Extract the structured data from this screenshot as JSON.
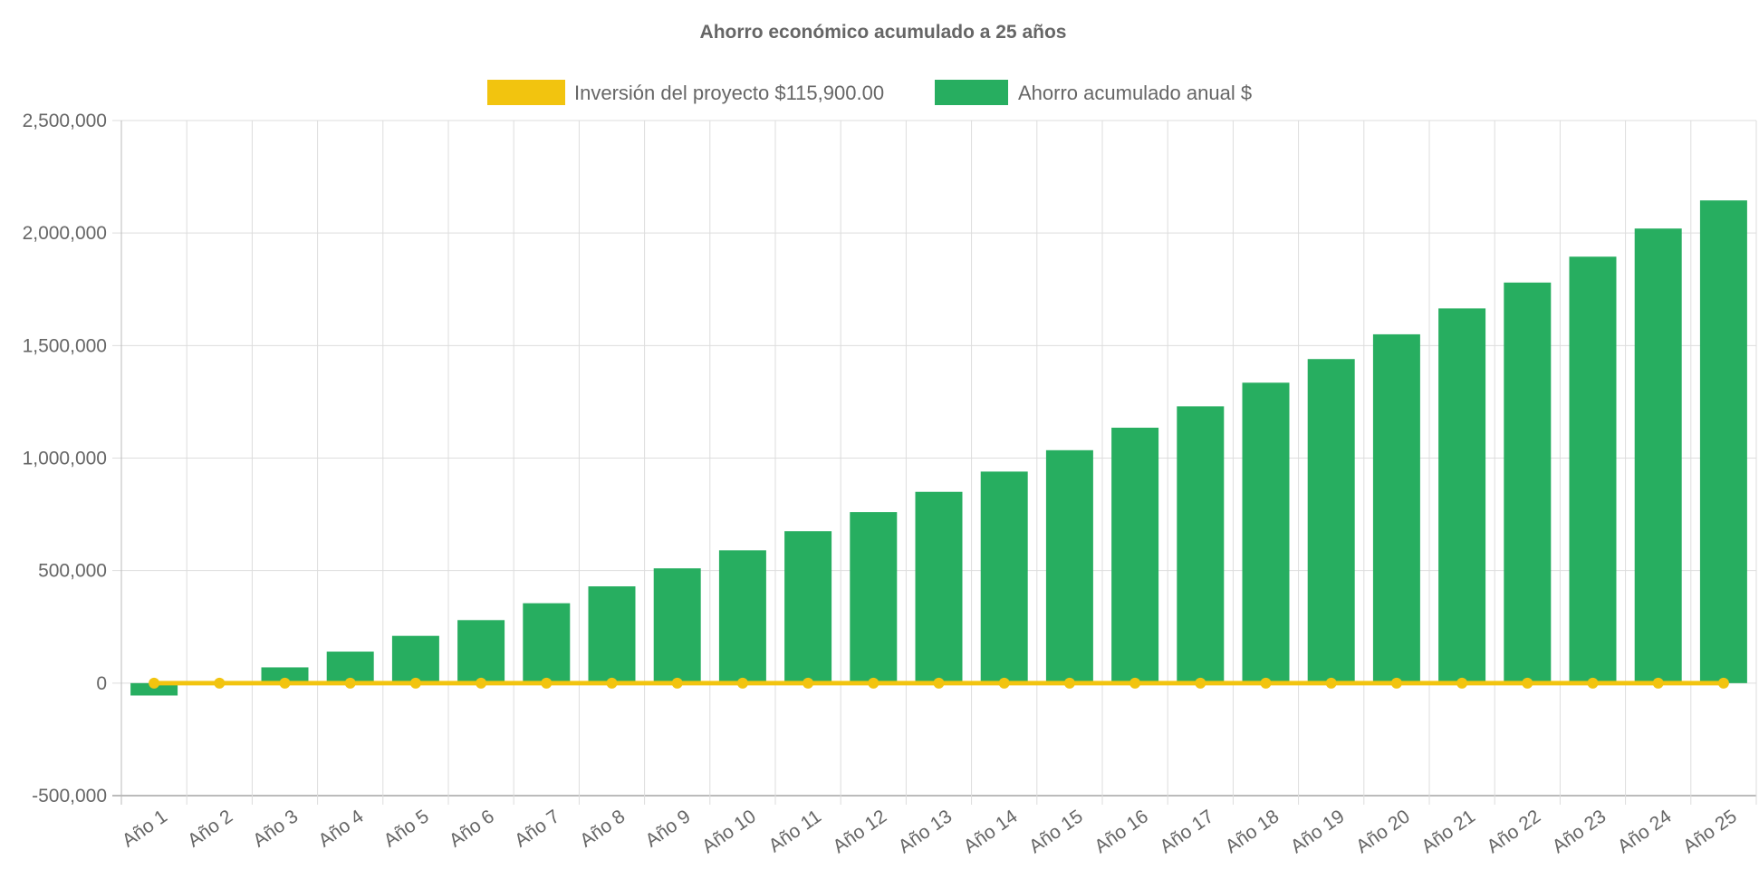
{
  "chart_data": {
    "type": "bar",
    "title": "Ahorro económico acumulado a 25 años",
    "categories": [
      "Año 1",
      "Año 2",
      "Año 3",
      "Año 4",
      "Año 5",
      "Año 6",
      "Año 7",
      "Año 8",
      "Año 9",
      "Año 10",
      "Año 11",
      "Año 12",
      "Año 13",
      "Año 14",
      "Año 15",
      "Año 16",
      "Año 17",
      "Año 18",
      "Año 19",
      "Año 20",
      "Año 21",
      "Año 22",
      "Año 23",
      "Año 24",
      "Año 25"
    ],
    "series": [
      {
        "name": "Inversión del proyecto $115,900.00",
        "type": "line",
        "color": "#f2c40f",
        "values": [
          0,
          0,
          0,
          0,
          0,
          0,
          0,
          0,
          0,
          0,
          0,
          0,
          0,
          0,
          0,
          0,
          0,
          0,
          0,
          0,
          0,
          0,
          0,
          0,
          0
        ]
      },
      {
        "name": "Ahorro acumulado anual $",
        "type": "bar",
        "color": "#27ae60",
        "values": [
          -55000,
          5000,
          70000,
          140000,
          210000,
          280000,
          355000,
          430000,
          510000,
          590000,
          675000,
          760000,
          850000,
          940000,
          1035000,
          1135000,
          1230000,
          1335000,
          1440000,
          1550000,
          1665000,
          1780000,
          1895000,
          2020000,
          2145000
        ]
      }
    ],
    "yticks": [
      -500000,
      0,
      500000,
      1000000,
      1500000,
      2000000,
      2500000
    ],
    "ytick_labels": [
      "-500,000",
      "0",
      "500,000",
      "1,000,000",
      "1,500,000",
      "2,000,000",
      "2,500,000"
    ],
    "ylim": [
      -500000,
      2500000
    ],
    "grid": true,
    "legend_position": "top"
  }
}
